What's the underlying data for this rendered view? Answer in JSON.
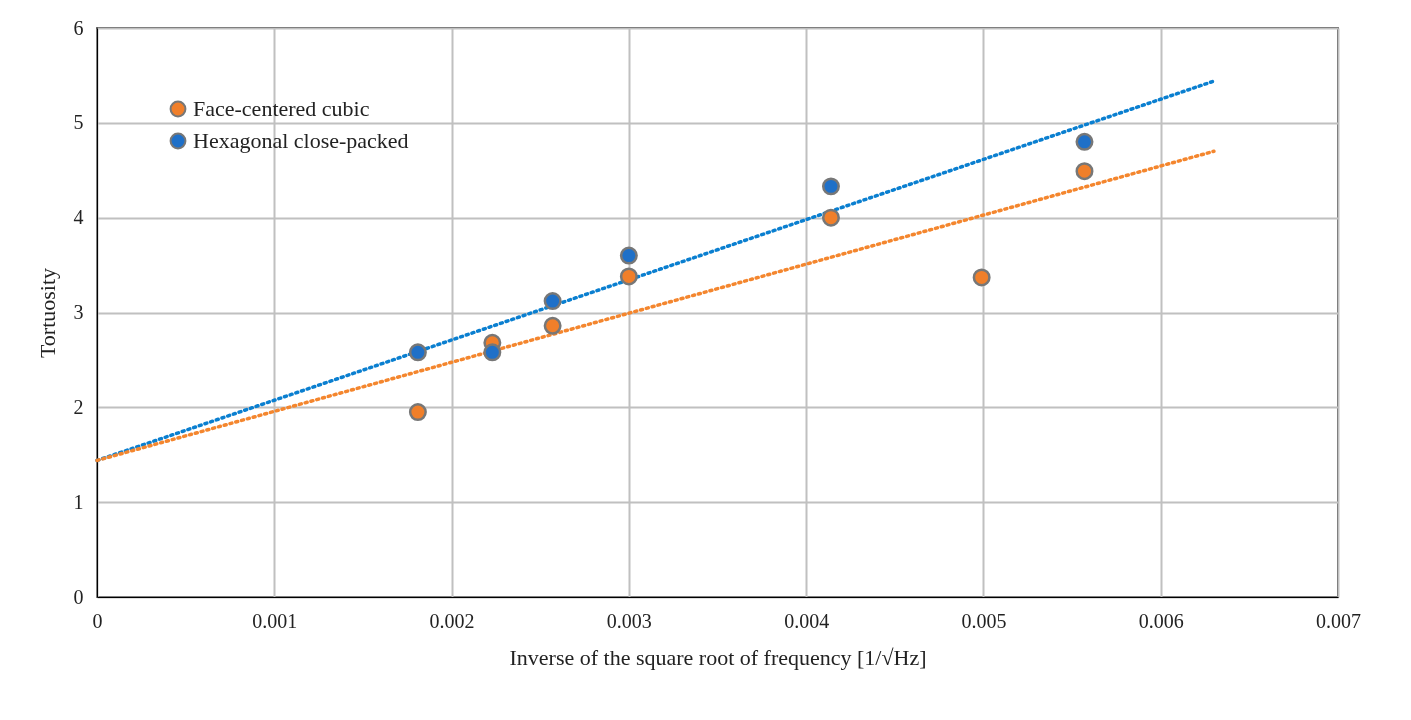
{
  "chart_data": {
    "type": "scatter",
    "xlabel": "Inverse of the square root of frequency [1/√Hz]",
    "ylabel": "Tortuosity",
    "x": [
      0.00181,
      0.00223,
      0.00257,
      0.003,
      0.00414,
      0.00499,
      0.00557
    ],
    "series": [
      {
        "name": "Face-centered cubic",
        "color": "#f07f2a",
        "values": [
          1.95,
          2.68,
          2.86,
          3.38,
          4.0,
          3.37,
          4.49
        ]
      },
      {
        "name": "Hexagonal close-packed",
        "color": "#1f70c8",
        "x": [
          0.00181,
          0.00223,
          0.00257,
          0.003,
          0.00414,
          0.00557
        ],
        "values": [
          2.58,
          2.58,
          3.12,
          3.6,
          4.33,
          4.8
        ]
      },
      {
        "type": "line",
        "color": "#f4862e",
        "line_style": "dotted",
        "marker": "none",
        "x": [
          0,
          0.0063
        ],
        "values": [
          1.44,
          4.7
        ]
      },
      {
        "type": "line",
        "color": "#0a7fd0",
        "line_style": "dotted",
        "marker": "none",
        "x": [
          0,
          0.0063
        ],
        "values": [
          1.44,
          5.44
        ]
      }
    ],
    "xlim": [
      0,
      0.007
    ],
    "xticks": [
      0,
      0.001,
      0.002,
      0.003,
      0.004,
      0.005,
      0.006,
      0.007
    ],
    "ylim": [
      0,
      6
    ],
    "yticks": [
      0,
      1,
      2,
      3,
      4,
      5,
      6
    ],
    "grid": true,
    "legend": "top left",
    "marker": "circle"
  }
}
